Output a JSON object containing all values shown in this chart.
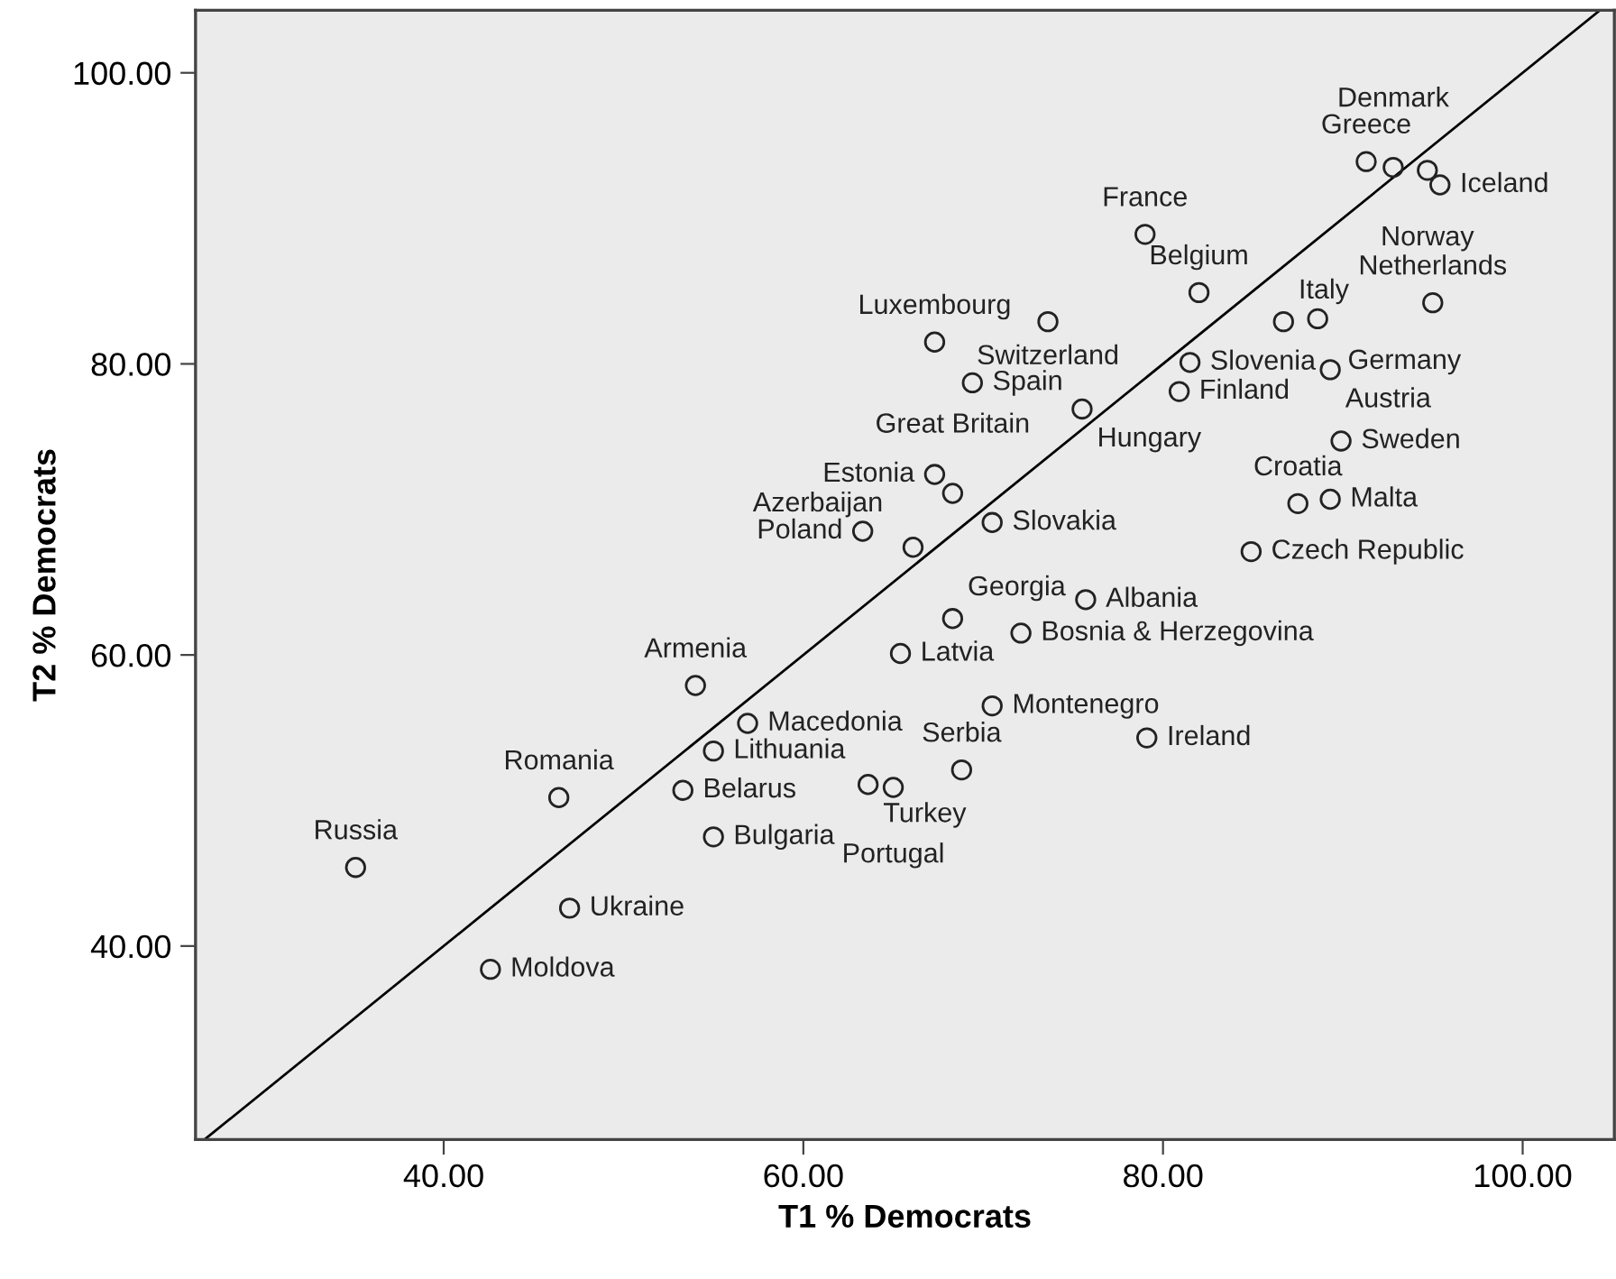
{
  "chart_data": {
    "type": "scatter",
    "xlabel": "T1 % Democrats",
    "ylabel": "T2 % Democrats",
    "xlim": [
      26.2,
      105.1
    ],
    "ylim": [
      26.7,
      104.3
    ],
    "xticks": [
      {
        "value": 40,
        "label": "40.00"
      },
      {
        "value": 60,
        "label": "60.00"
      },
      {
        "value": 80,
        "label": "80.00"
      },
      {
        "value": 100,
        "label": "100.00"
      }
    ],
    "yticks": [
      {
        "value": 40,
        "label": "40.00"
      },
      {
        "value": 60,
        "label": "60.00"
      },
      {
        "value": 80,
        "label": "80.00"
      },
      {
        "value": 100,
        "label": "100.00"
      }
    ],
    "grid": false,
    "legend": false,
    "series": [
      {
        "marker": "circle",
        "color": "#222222",
        "x": [
          35.1,
          42.6,
          47.0,
          46.4,
          53.3,
          55.0,
          55.0,
          56.9,
          54.0,
          65.4,
          63.6,
          65.0,
          68.8,
          70.5,
          79.1,
          72.1,
          68.3,
          75.7,
          66.1,
          63.3,
          70.5,
          68.3,
          67.3,
          67.3,
          69.4,
          73.6,
          79.0,
          82.0,
          75.5,
          81.5,
          80.9,
          86.7,
          88.6,
          89.3,
          89.9,
          87.5,
          89.3,
          84.9,
          95.0,
          91.3,
          92.8,
          94.7,
          95.4
        ],
        "values": [
          45.4,
          38.4,
          42.6,
          50.2,
          50.7,
          47.5,
          53.4,
          55.3,
          57.9,
          60.1,
          51.1,
          50.9,
          52.1,
          56.5,
          54.3,
          61.5,
          62.5,
          63.8,
          67.4,
          68.5,
          69.1,
          71.1,
          72.4,
          81.5,
          78.7,
          82.9,
          88.9,
          84.9,
          76.9,
          80.1,
          78.1,
          82.9,
          83.1,
          79.6,
          74.7,
          70.4,
          70.7,
          67.1,
          84.2,
          93.9,
          93.5,
          93.3,
          92.3
        ]
      },
      {
        "type": "line",
        "marker": "none",
        "color": "#000000",
        "x": [
          26.7,
          104.3
        ],
        "values": [
          26.7,
          104.3
        ]
      }
    ],
    "annotations": [
      {
        "text": "Russia",
        "x": 35.1,
        "y": 45.4
      },
      {
        "text": "Moldova",
        "x": 42.6,
        "y": 38.4
      },
      {
        "text": "Ukraine",
        "x": 47.0,
        "y": 42.6
      },
      {
        "text": "Romania",
        "x": 46.4,
        "y": 50.2
      },
      {
        "text": "Belarus",
        "x": 53.3,
        "y": 50.7
      },
      {
        "text": "Bulgaria",
        "x": 55.0,
        "y": 47.5
      },
      {
        "text": "Lithuania",
        "x": 55.0,
        "y": 53.4
      },
      {
        "text": "Macedonia",
        "x": 56.9,
        "y": 55.3
      },
      {
        "text": "Armenia",
        "x": 54.0,
        "y": 57.9
      },
      {
        "text": "Latvia",
        "x": 65.4,
        "y": 60.1
      },
      {
        "text": "Turkey",
        "x": 63.6,
        "y": 51.1
      },
      {
        "text": "Portugal",
        "x": 65.0,
        "y": 50.9
      },
      {
        "text": "Serbia",
        "x": 68.8,
        "y": 52.1
      },
      {
        "text": "Montenegro",
        "x": 70.5,
        "y": 56.5
      },
      {
        "text": "Ireland",
        "x": 79.1,
        "y": 54.3
      },
      {
        "text": "Bosnia & Herzegovina",
        "x": 72.1,
        "y": 61.5
      },
      {
        "text": "Georgia",
        "x": 68.3,
        "y": 62.5
      },
      {
        "text": "Albania",
        "x": 75.7,
        "y": 63.8
      },
      {
        "text": "Azerbaijan",
        "x": 66.1,
        "y": 67.4
      },
      {
        "text": "Poland",
        "x": 63.3,
        "y": 68.5
      },
      {
        "text": "Slovakia",
        "x": 70.5,
        "y": 69.1
      },
      {
        "text": "Great Britain",
        "x": 68.3,
        "y": 71.1
      },
      {
        "text": "Estonia",
        "x": 67.3,
        "y": 72.4
      },
      {
        "text": "Luxembourg",
        "x": 67.3,
        "y": 81.5
      },
      {
        "text": "Spain",
        "x": 69.4,
        "y": 78.7
      },
      {
        "text": "Switzerland",
        "x": 73.6,
        "y": 82.9
      },
      {
        "text": "France",
        "x": 79.0,
        "y": 88.9
      },
      {
        "text": "Belgium",
        "x": 82.0,
        "y": 84.9
      },
      {
        "text": "Hungary",
        "x": 75.5,
        "y": 76.9
      },
      {
        "text": "Slovenia",
        "x": 81.5,
        "y": 80.1
      },
      {
        "text": "Finland",
        "x": 80.9,
        "y": 78.1
      },
      {
        "text": "Italy",
        "x": 86.7,
        "y": 82.9
      },
      {
        "text": "Germany",
        "x": 88.6,
        "y": 83.1
      },
      {
        "text": "Austria",
        "x": 89.3,
        "y": 79.6
      },
      {
        "text": "Sweden",
        "x": 89.9,
        "y": 74.7
      },
      {
        "text": "Croatia",
        "x": 87.5,
        "y": 70.4
      },
      {
        "text": "Malta",
        "x": 89.3,
        "y": 70.7
      },
      {
        "text": "Czech Republic",
        "x": 84.9,
        "y": 67.1
      },
      {
        "text": "Netherlands",
        "x": 95.0,
        "y": 84.2
      },
      {
        "text": "Greece",
        "x": 91.3,
        "y": 93.9
      },
      {
        "text": "Denmark",
        "x": 92.8,
        "y": 93.5
      },
      {
        "text": "Norway",
        "x": 94.7,
        "y": 93.3
      },
      {
        "text": "Iceland",
        "x": 95.4,
        "y": 92.3
      }
    ]
  }
}
